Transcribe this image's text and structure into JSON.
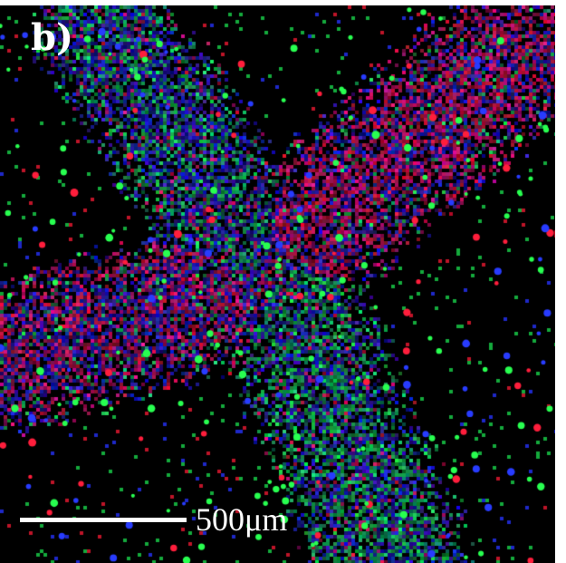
{
  "figure": {
    "panel_label": "b)",
    "scale_bar_label": "500μm"
  },
  "colors": {
    "background": "#000000",
    "red_channel": "#ff1a3a",
    "green_channel": "#1aff4a",
    "blue_channel": "#1a2aff",
    "text": "#ffffff"
  }
}
